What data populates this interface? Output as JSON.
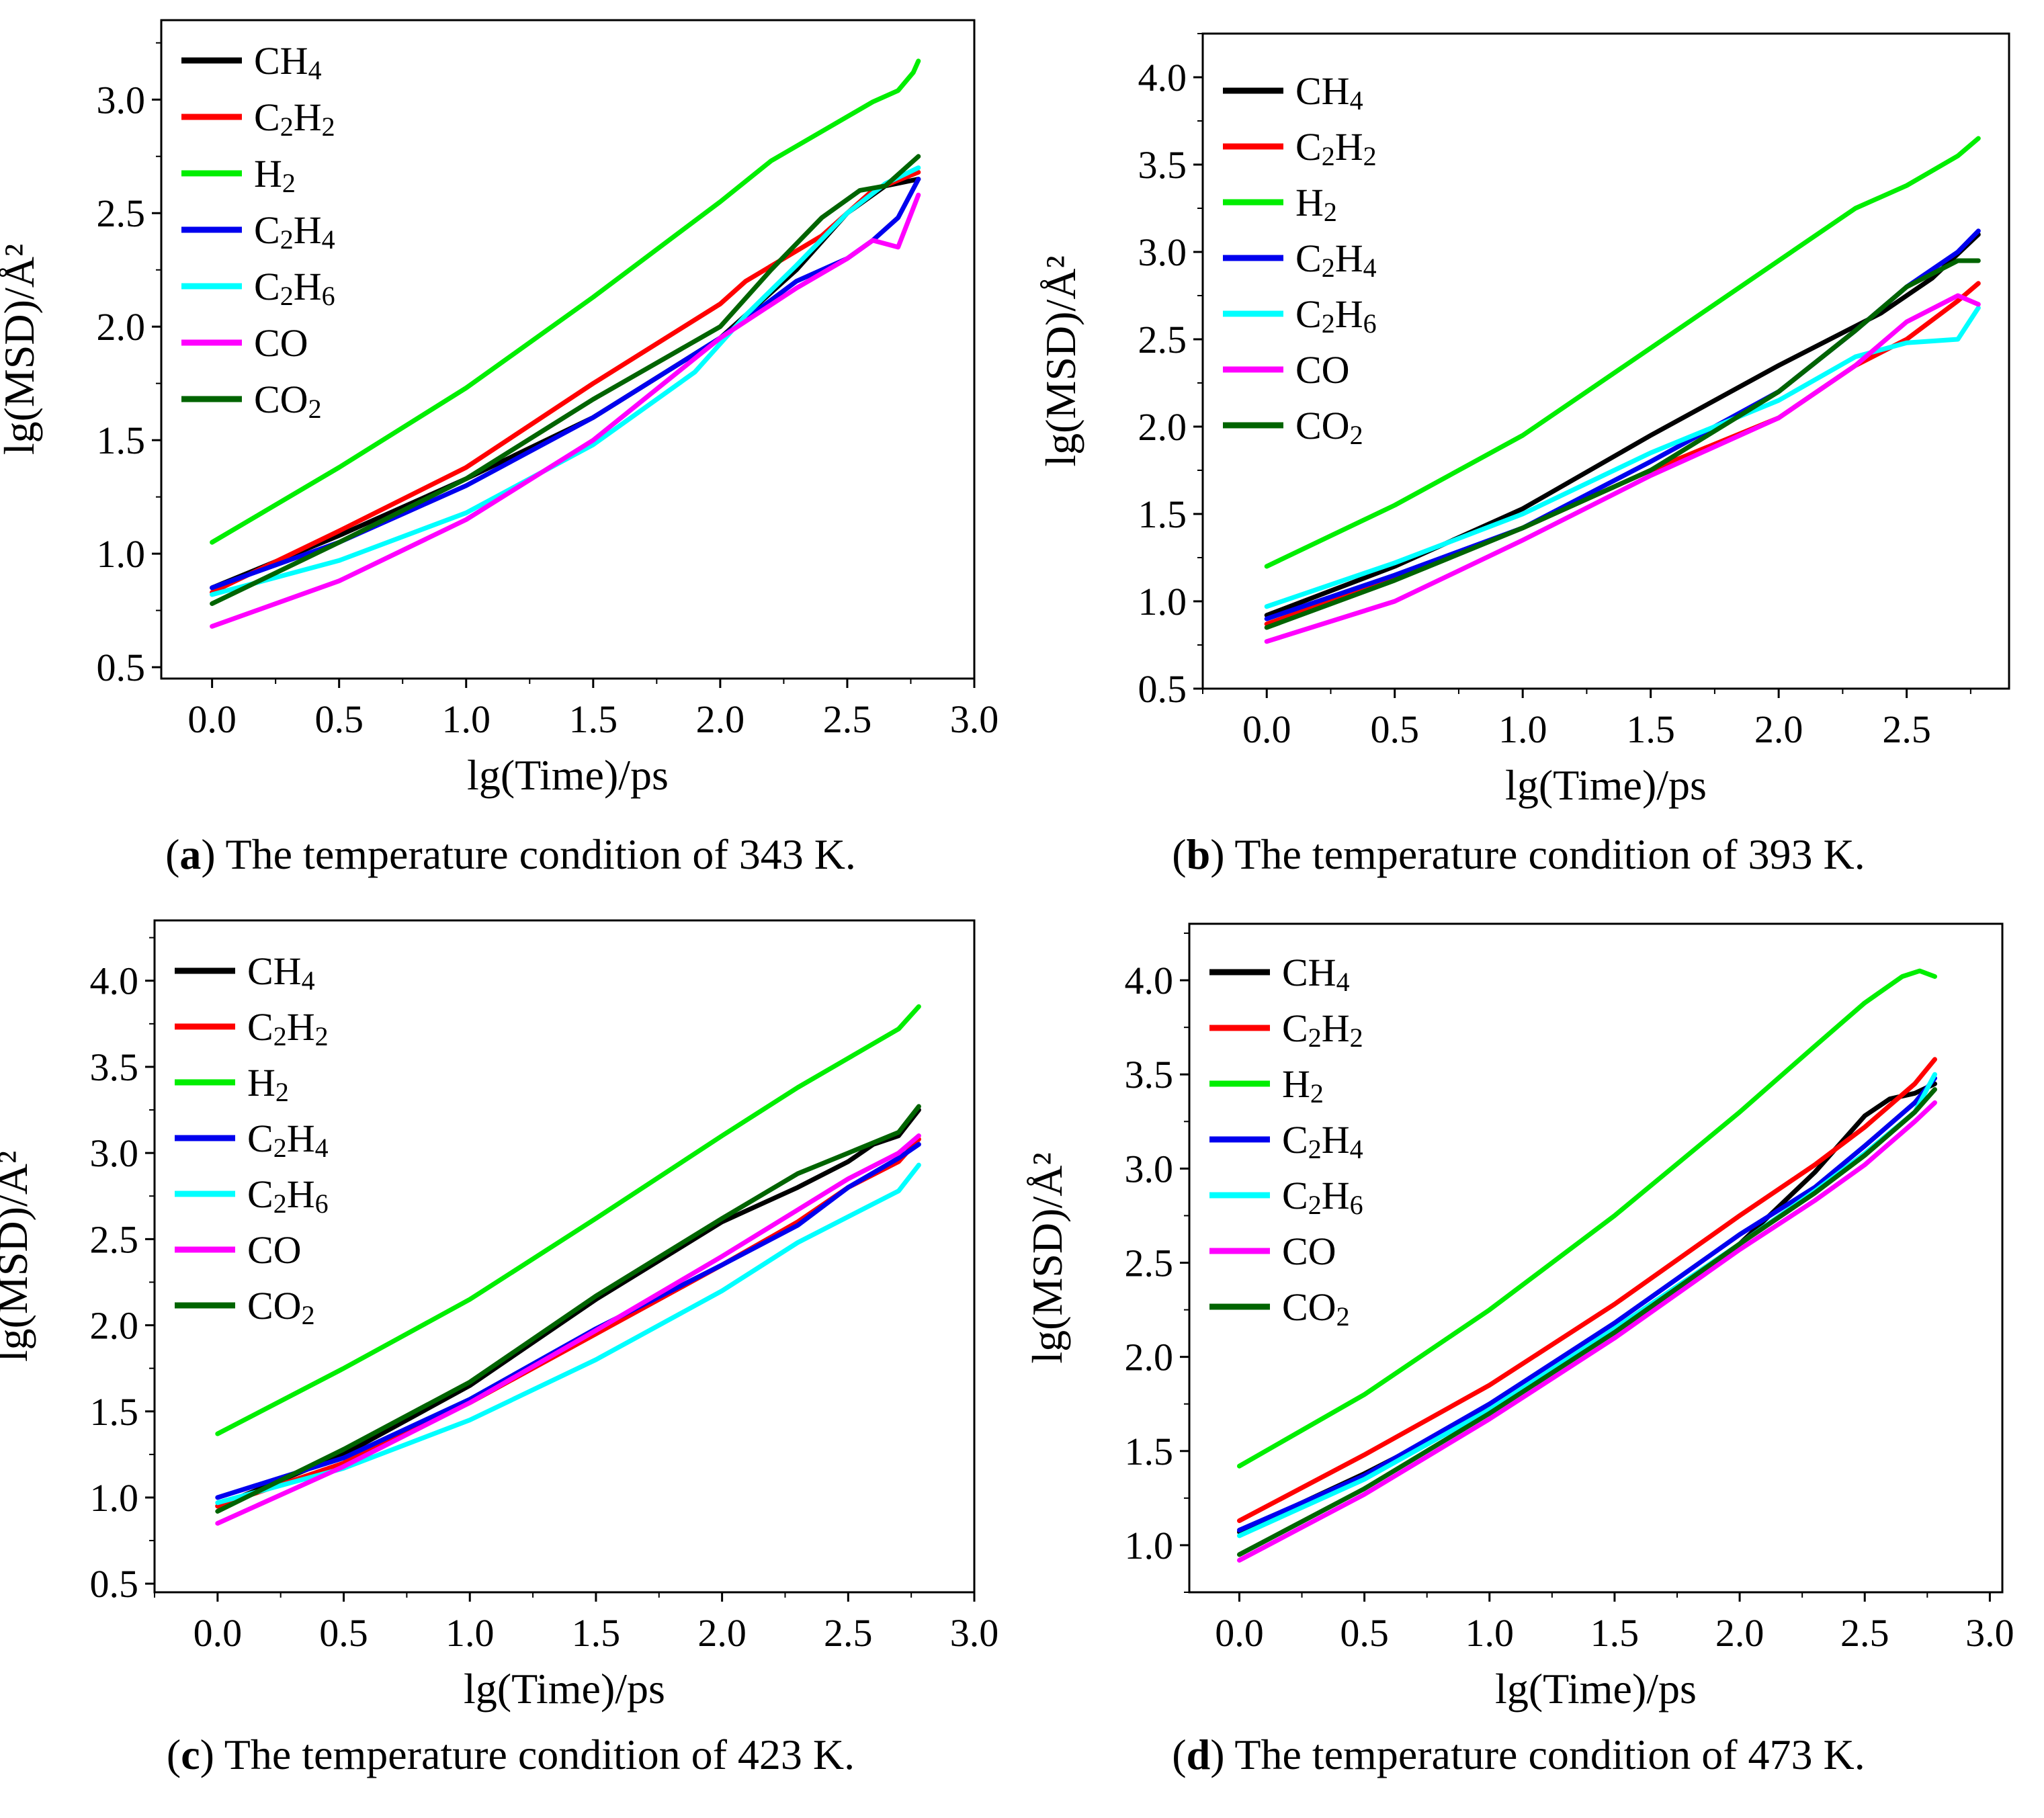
{
  "panels": [
    {
      "letter": "a",
      "caption": "The temperature condition of 343 K.",
      "chart_data": {
        "type": "line",
        "title": "",
        "xlabel": "lg(Time)/ps",
        "ylabel": "lg(MSD)/Å²",
        "xlim": [
          -0.2,
          3.0
        ],
        "ylim": [
          0.45,
          3.35
        ],
        "xticks": [
          0.0,
          0.5,
          1.0,
          1.5,
          2.0,
          2.5,
          3.0
        ],
        "yticks": [
          0.5,
          1.0,
          1.5,
          2.0,
          2.5,
          3.0
        ],
        "legend_position": "top-left",
        "series": [
          {
            "name": "CH4",
            "color": "#000000",
            "x": [
              0,
              0.5,
              1.0,
              1.5,
              2.0,
              2.3,
              2.5,
              2.65,
              2.78
            ],
            "y": [
              0.85,
              1.08,
              1.33,
              1.6,
              1.95,
              2.25,
              2.5,
              2.62,
              2.65
            ]
          },
          {
            "name": "C2H2",
            "color": "#ff0000",
            "x": [
              0,
              0.5,
              1.0,
              1.5,
              2.0,
              2.1,
              2.4,
              2.6,
              2.78
            ],
            "y": [
              0.83,
              1.1,
              1.38,
              1.75,
              2.1,
              2.2,
              2.4,
              2.6,
              2.68
            ]
          },
          {
            "name": "H2",
            "color": "#00ee00",
            "x": [
              0,
              0.5,
              1.0,
              1.5,
              2.0,
              2.2,
              2.4,
              2.6,
              2.7,
              2.76,
              2.78
            ],
            "y": [
              1.05,
              1.38,
              1.73,
              2.13,
              2.55,
              2.73,
              2.86,
              2.99,
              3.04,
              3.12,
              3.17
            ]
          },
          {
            "name": "C2H4",
            "color": "#0000ee",
            "x": [
              0,
              0.5,
              1.0,
              1.5,
              2.0,
              2.3,
              2.5,
              2.6,
              2.7,
              2.78
            ],
            "y": [
              0.85,
              1.05,
              1.3,
              1.6,
              1.95,
              2.2,
              2.3,
              2.38,
              2.48,
              2.65
            ]
          },
          {
            "name": "C2H6",
            "color": "#00ffff",
            "x": [
              0,
              0.5,
              1.0,
              1.5,
              1.9,
              2.1,
              2.3,
              2.5,
              2.65,
              2.78
            ],
            "y": [
              0.82,
              0.97,
              1.18,
              1.48,
              1.8,
              2.05,
              2.27,
              2.5,
              2.63,
              2.7
            ]
          },
          {
            "name": "CO",
            "color": "#ff00ff",
            "x": [
              0,
              0.5,
              1.0,
              1.5,
              2.0,
              2.3,
              2.5,
              2.6,
              2.7,
              2.78
            ],
            "y": [
              0.68,
              0.88,
              1.15,
              1.5,
              1.95,
              2.17,
              2.3,
              2.38,
              2.35,
              2.58
            ]
          },
          {
            "name": "CO2",
            "color": "#006400",
            "x": [
              0,
              0.5,
              1.0,
              1.5,
              2.0,
              2.2,
              2.4,
              2.55,
              2.65,
              2.78
            ],
            "y": [
              0.78,
              1.05,
              1.33,
              1.68,
              2.0,
              2.25,
              2.48,
              2.6,
              2.62,
              2.75
            ]
          }
        ]
      }
    },
    {
      "letter": "b",
      "caption": "The temperature condition of 393 K.",
      "chart_data": {
        "type": "line",
        "title": "",
        "xlabel": "lg(Time)/ps",
        "ylabel": "lg(MSD)/Å²",
        "xlim": [
          -0.25,
          2.9
        ],
        "ylim": [
          0.5,
          4.25
        ],
        "xticks": [
          0.0,
          0.5,
          1.0,
          1.5,
          2.0,
          2.5
        ],
        "yticks": [
          0.5,
          1.0,
          1.5,
          2.0,
          2.5,
          3.0,
          3.5,
          4.0
        ],
        "legend_position": "top-left",
        "series": [
          {
            "name": "CH4",
            "color": "#000000",
            "x": [
              0,
              0.5,
              1.0,
              1.5,
              2.0,
              2.2,
              2.4,
              2.6,
              2.78
            ],
            "y": [
              0.92,
              1.2,
              1.53,
              1.95,
              2.35,
              2.5,
              2.65,
              2.85,
              3.1
            ]
          },
          {
            "name": "C2H2",
            "color": "#ff0000",
            "x": [
              0,
              0.5,
              1.0,
              1.5,
              2.0,
              2.3,
              2.5,
              2.7,
              2.78
            ],
            "y": [
              0.87,
              1.13,
              1.42,
              1.75,
              2.05,
              2.35,
              2.5,
              2.72,
              2.82
            ]
          },
          {
            "name": "H2",
            "color": "#00ee00",
            "x": [
              0,
              0.5,
              1.0,
              1.5,
              2.0,
              2.3,
              2.5,
              2.7,
              2.78
            ],
            "y": [
              1.2,
              1.55,
              1.95,
              2.45,
              2.95,
              3.25,
              3.38,
              3.55,
              3.65
            ]
          },
          {
            "name": "C2H4",
            "color": "#0000ee",
            "x": [
              0,
              0.5,
              1.0,
              1.5,
              2.0,
              2.3,
              2.5,
              2.7,
              2.78
            ],
            "y": [
              0.9,
              1.15,
              1.42,
              1.8,
              2.2,
              2.55,
              2.8,
              3.0,
              3.12
            ]
          },
          {
            "name": "C2H6",
            "color": "#00ffff",
            "x": [
              0,
              0.5,
              1.0,
              1.5,
              2.0,
              2.3,
              2.5,
              2.7,
              2.78
            ],
            "y": [
              0.97,
              1.22,
              1.5,
              1.85,
              2.15,
              2.4,
              2.48,
              2.5,
              2.68
            ]
          },
          {
            "name": "CO",
            "color": "#ff00ff",
            "x": [
              0,
              0.5,
              1.0,
              1.5,
              2.0,
              2.3,
              2.5,
              2.7,
              2.78
            ],
            "y": [
              0.77,
              1.0,
              1.35,
              1.72,
              2.05,
              2.35,
              2.6,
              2.75,
              2.7
            ]
          },
          {
            "name": "CO2",
            "color": "#006400",
            "x": [
              0,
              0.5,
              1.0,
              1.5,
              2.0,
              2.3,
              2.5,
              2.7,
              2.78
            ],
            "y": [
              0.85,
              1.12,
              1.42,
              1.75,
              2.2,
              2.55,
              2.8,
              2.95,
              2.95
            ]
          }
        ]
      }
    },
    {
      "letter": "c",
      "caption": "The temperature condition of 423 K.",
      "chart_data": {
        "type": "line",
        "title": "",
        "xlabel": "lg(Time)/ps",
        "ylabel": "lg(MSD)/Å²",
        "xlim": [
          -0.25,
          3.0
        ],
        "ylim": [
          0.45,
          4.35
        ],
        "xticks": [
          0.0,
          0.5,
          1.0,
          1.5,
          2.0,
          2.5,
          3.0
        ],
        "yticks": [
          0.5,
          1.0,
          1.5,
          2.0,
          2.5,
          3.0,
          3.5,
          4.0
        ],
        "legend_position": "top-left",
        "series": [
          {
            "name": "CH4",
            "color": "#000000",
            "x": [
              0,
              0.5,
              1.0,
              1.5,
              2.0,
              2.3,
              2.5,
              2.6,
              2.7,
              2.78
            ],
            "y": [
              0.95,
              1.25,
              1.65,
              2.15,
              2.6,
              2.8,
              2.95,
              3.05,
              3.1,
              3.25
            ]
          },
          {
            "name": "C2H2",
            "color": "#ff0000",
            "x": [
              0,
              0.5,
              1.0,
              1.5,
              2.0,
              2.3,
              2.5,
              2.7,
              2.78
            ],
            "y": [
              0.95,
              1.2,
              1.55,
              1.95,
              2.35,
              2.6,
              2.8,
              2.95,
              3.08
            ]
          },
          {
            "name": "H2",
            "color": "#00ee00",
            "x": [
              0,
              0.5,
              1.0,
              1.5,
              2.0,
              2.3,
              2.5,
              2.7,
              2.78
            ],
            "y": [
              1.37,
              1.75,
              2.15,
              2.62,
              3.1,
              3.38,
              3.55,
              3.72,
              3.85
            ]
          },
          {
            "name": "C2H4",
            "color": "#0000ee",
            "x": [
              0,
              0.5,
              1.0,
              1.5,
              2.0,
              2.3,
              2.5,
              2.7,
              2.78
            ],
            "y": [
              1.0,
              1.23,
              1.57,
              1.98,
              2.35,
              2.58,
              2.8,
              2.97,
              3.05
            ]
          },
          {
            "name": "C2H6",
            "color": "#00ffff",
            "x": [
              0,
              0.5,
              1.0,
              1.5,
              2.0,
              2.3,
              2.5,
              2.7,
              2.78
            ],
            "y": [
              0.97,
              1.17,
              1.45,
              1.8,
              2.2,
              2.48,
              2.63,
              2.78,
              2.93
            ]
          },
          {
            "name": "CO",
            "color": "#ff00ff",
            "x": [
              0,
              0.5,
              1.0,
              1.5,
              2.0,
              2.3,
              2.5,
              2.7,
              2.78
            ],
            "y": [
              0.85,
              1.18,
              1.55,
              1.97,
              2.4,
              2.67,
              2.85,
              3.0,
              3.1
            ]
          },
          {
            "name": "CO2",
            "color": "#006400",
            "x": [
              0,
              0.5,
              1.0,
              1.5,
              2.0,
              2.3,
              2.5,
              2.7,
              2.78
            ],
            "y": [
              0.92,
              1.28,
              1.67,
              2.17,
              2.62,
              2.88,
              3.0,
              3.12,
              3.27
            ]
          }
        ]
      }
    },
    {
      "letter": "d",
      "caption": "The temperature condition of 473 K.",
      "chart_data": {
        "type": "line",
        "title": "",
        "xlabel": "lg(Time)/ps",
        "ylabel": "lg(MSD)/Å²",
        "xlim": [
          -0.2,
          3.05
        ],
        "ylim": [
          0.75,
          4.3
        ],
        "xticks": [
          0.0,
          0.5,
          1.0,
          1.5,
          2.0,
          2.5,
          3.0
        ],
        "yticks": [
          1.0,
          1.5,
          2.0,
          2.5,
          3.0,
          3.5,
          4.0
        ],
        "legend_position": "top-left",
        "series": [
          {
            "name": "CH4",
            "color": "#000000",
            "x": [
              0,
              0.5,
              1.0,
              1.5,
              2.0,
              2.3,
              2.5,
              2.6,
              2.7,
              2.78
            ],
            "y": [
              1.07,
              1.38,
              1.72,
              2.13,
              2.6,
              2.98,
              3.28,
              3.37,
              3.4,
              3.45
            ]
          },
          {
            "name": "C2H2",
            "color": "#ff0000",
            "x": [
              0,
              0.5,
              1.0,
              1.5,
              2.0,
              2.3,
              2.5,
              2.7,
              2.78
            ],
            "y": [
              1.13,
              1.48,
              1.85,
              2.28,
              2.75,
              3.02,
              3.22,
              3.45,
              3.58
            ]
          },
          {
            "name": "H2",
            "color": "#00ee00",
            "x": [
              0,
              0.5,
              1.0,
              1.5,
              2.0,
              2.3,
              2.5,
              2.65,
              2.72,
              2.78
            ],
            "y": [
              1.42,
              1.8,
              2.25,
              2.75,
              3.3,
              3.65,
              3.88,
              4.02,
              4.05,
              4.02
            ]
          },
          {
            "name": "C2H4",
            "color": "#0000ee",
            "x": [
              0,
              0.5,
              1.0,
              1.5,
              2.0,
              2.3,
              2.5,
              2.7,
              2.78
            ],
            "y": [
              1.08,
              1.37,
              1.75,
              2.18,
              2.65,
              2.9,
              3.12,
              3.35,
              3.48
            ]
          },
          {
            "name": "C2H6",
            "color": "#00ffff",
            "x": [
              0,
              0.5,
              1.0,
              1.5,
              2.0,
              2.3,
              2.5,
              2.7,
              2.78
            ],
            "y": [
              1.05,
              1.35,
              1.72,
              2.15,
              2.6,
              2.88,
              3.08,
              3.3,
              3.5
            ]
          },
          {
            "name": "CO",
            "color": "#ff00ff",
            "x": [
              0,
              0.5,
              1.0,
              1.5,
              2.0,
              2.3,
              2.5,
              2.7,
              2.78
            ],
            "y": [
              0.92,
              1.27,
              1.67,
              2.1,
              2.57,
              2.83,
              3.02,
              3.25,
              3.35
            ]
          },
          {
            "name": "CO2",
            "color": "#006400",
            "x": [
              0,
              0.5,
              1.0,
              1.5,
              2.0,
              2.3,
              2.5,
              2.7,
              2.78
            ],
            "y": [
              0.95,
              1.3,
              1.7,
              2.13,
              2.6,
              2.87,
              3.07,
              3.3,
              3.42
            ]
          }
        ]
      }
    }
  ]
}
